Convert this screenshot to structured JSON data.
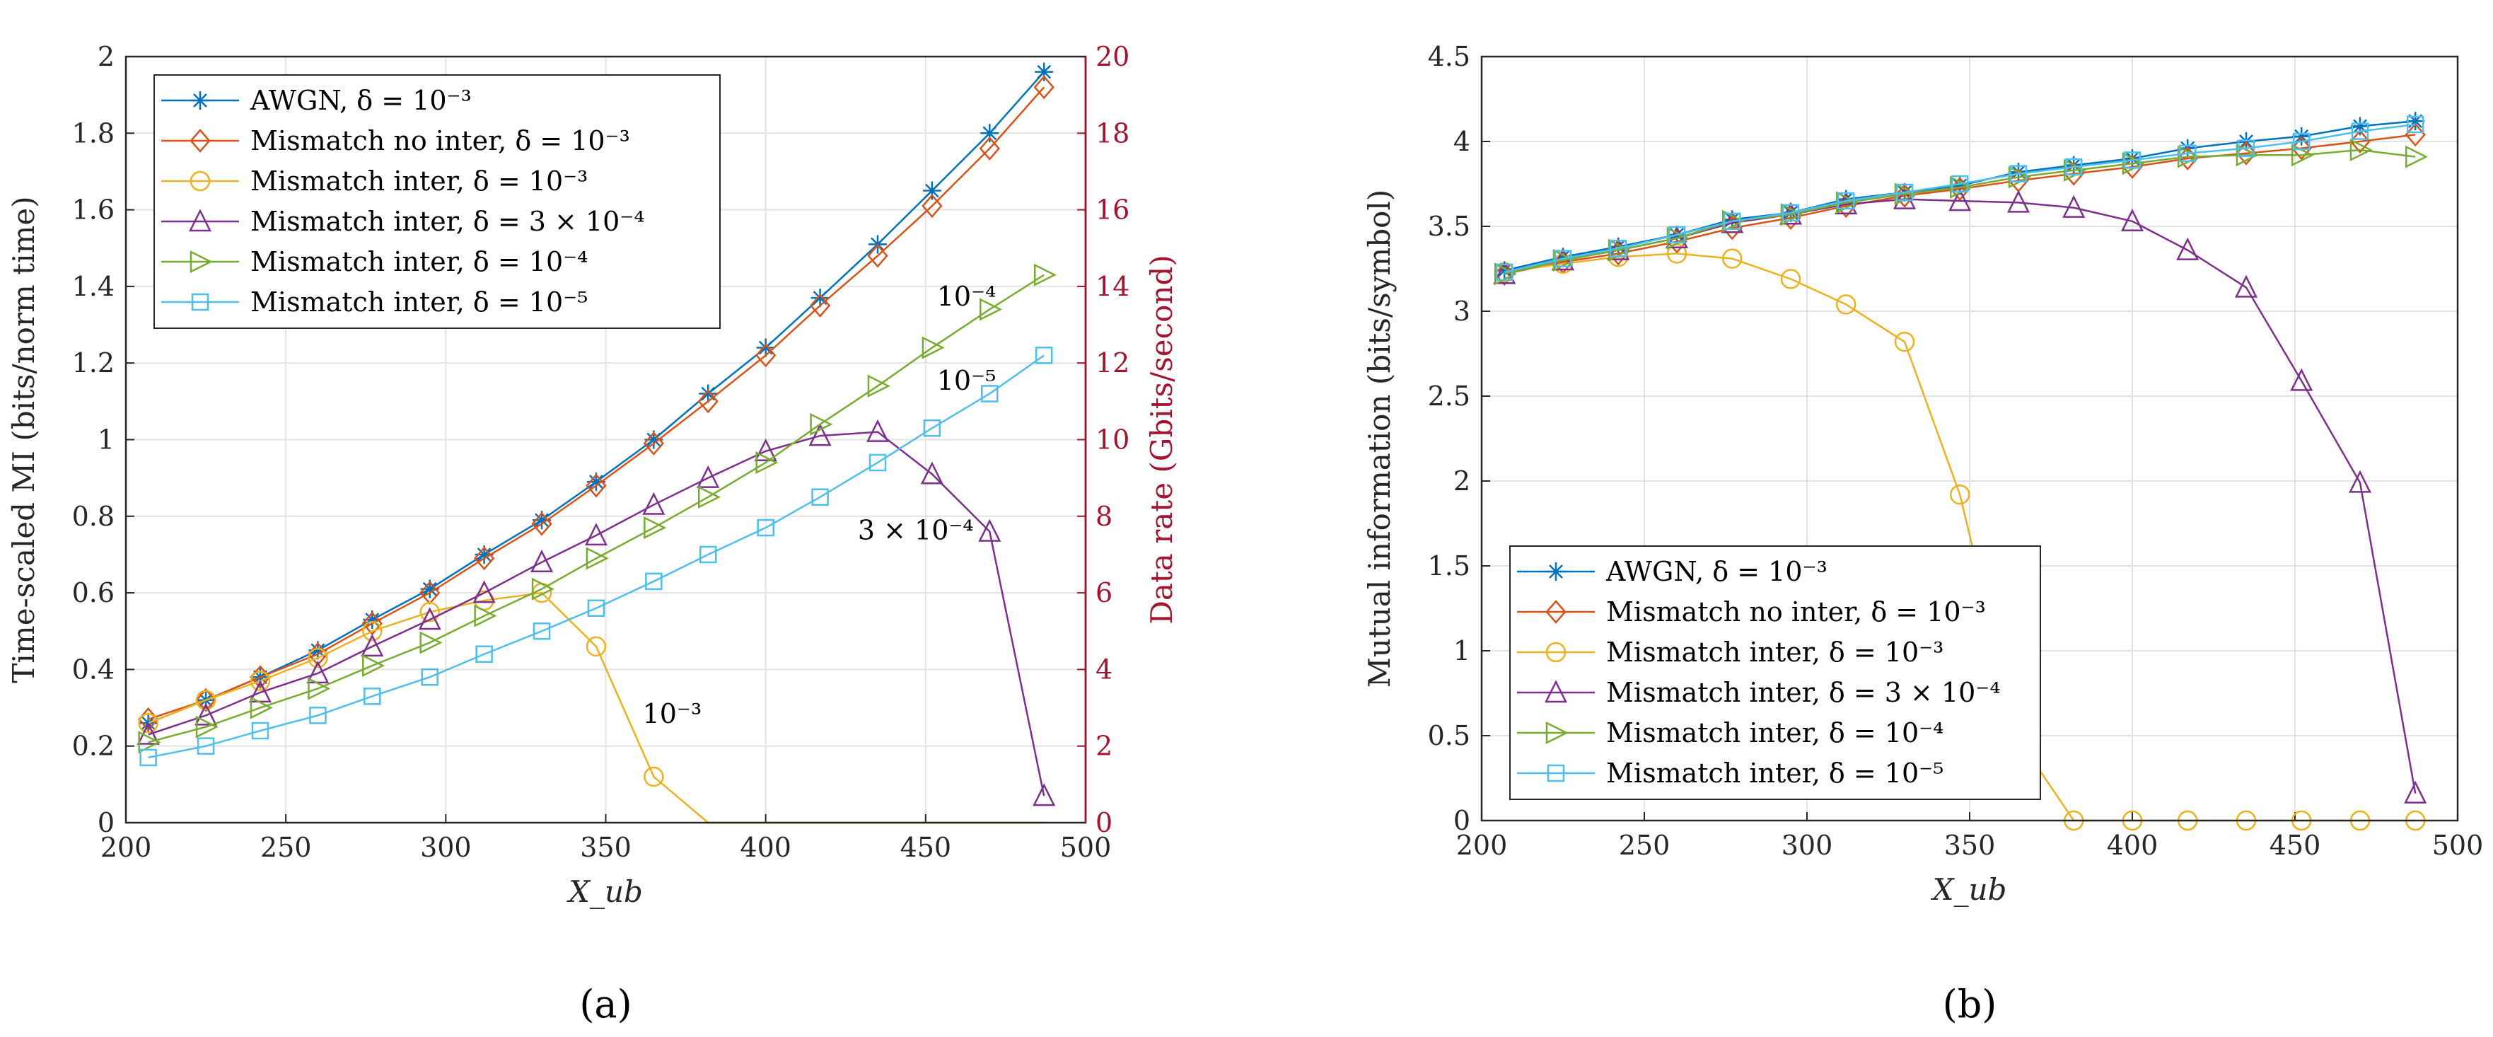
{
  "chart_data": [
    {
      "type": "line",
      "panel_label": "(a)",
      "xlabel": "X_ub",
      "ylabel": "Time-scaled MI (bits/norm time)",
      "y2label": "Data rate (Gbits/second)",
      "xlim": [
        200,
        500
      ],
      "ylim": [
        0,
        2
      ],
      "y2lim": [
        0,
        20
      ],
      "xticks": [
        "200",
        "250",
        "300",
        "350",
        "400",
        "450",
        "500"
      ],
      "yticks": [
        "0",
        "0.2",
        "0.4",
        "0.6",
        "0.8",
        "1",
        "1.2",
        "1.4",
        "1.6",
        "1.8",
        "2"
      ],
      "y2ticks": [
        "0",
        "2",
        "4",
        "6",
        "8",
        "10",
        "12",
        "14",
        "16",
        "18",
        "20"
      ],
      "grid": true,
      "legend_position": "top-left",
      "x": [
        207,
        225,
        242,
        260,
        277,
        295,
        312,
        330,
        347,
        365,
        382,
        400,
        417,
        435,
        452,
        470,
        487
      ],
      "series": [
        {
          "name": "AWGN, δ = 10⁻³",
          "color": "#0072bd",
          "marker": "star",
          "values": [
            0.26,
            0.32,
            0.38,
            0.45,
            0.53,
            0.61,
            0.7,
            0.79,
            0.89,
            1.0,
            1.12,
            1.24,
            1.37,
            1.51,
            1.65,
            1.8,
            1.96
          ]
        },
        {
          "name": "Mismatch no inter, δ = 10⁻³",
          "color": "#d95319",
          "marker": "diamond",
          "values": [
            0.27,
            0.32,
            0.38,
            0.44,
            0.52,
            0.6,
            0.69,
            0.78,
            0.88,
            0.99,
            1.1,
            1.22,
            1.35,
            1.48,
            1.61,
            1.76,
            1.92
          ]
        },
        {
          "name": "Mismatch inter, δ = 10⁻³",
          "color": "#edb120",
          "marker": "circle",
          "values": [
            0.26,
            0.32,
            0.37,
            0.43,
            0.5,
            0.55,
            0.58,
            0.6,
            0.46,
            0.12,
            0.0,
            0.0,
            0.0,
            0.0,
            0.0,
            0.0,
            0.0
          ],
          "markers_until": 9
        },
        {
          "name": "Mismatch inter, δ = 3 × 10⁻⁴",
          "color": "#7e2f8e",
          "marker": "triangle-up",
          "values": [
            0.23,
            0.28,
            0.34,
            0.39,
            0.46,
            0.53,
            0.6,
            0.68,
            0.75,
            0.83,
            0.9,
            0.97,
            1.01,
            1.02,
            0.91,
            0.76,
            0.07
          ]
        },
        {
          "name": "Mismatch inter, δ = 10⁻⁴",
          "color": "#77ac30",
          "marker": "triangle-right",
          "values": [
            0.21,
            0.25,
            0.3,
            0.35,
            0.41,
            0.47,
            0.54,
            0.61,
            0.69,
            0.77,
            0.85,
            0.94,
            1.04,
            1.14,
            1.24,
            1.34,
            1.43
          ]
        },
        {
          "name": "Mismatch inter, δ = 10⁻⁵",
          "color": "#4dbeee",
          "marker": "square",
          "values": [
            0.17,
            0.2,
            0.24,
            0.28,
            0.33,
            0.38,
            0.44,
            0.5,
            0.56,
            0.63,
            0.7,
            0.77,
            0.85,
            0.94,
            1.03,
            1.12,
            1.22
          ]
        }
      ],
      "annotations": [
        {
          "text": "10⁻⁴",
          "x": 472,
          "y": 1.35
        },
        {
          "text": "10⁻⁵",
          "x": 472,
          "y": 1.13
        },
        {
          "text": "3 × 10⁻⁴",
          "x": 465,
          "y": 0.74
        },
        {
          "text": "10⁻³",
          "x": 380,
          "y": 0.26
        }
      ]
    },
    {
      "type": "line",
      "panel_label": "(b)",
      "xlabel": "X_ub",
      "ylabel": "Mutual information (bits/symbol)",
      "xlim": [
        200,
        500
      ],
      "ylim": [
        0,
        4.5
      ],
      "xticks": [
        "200",
        "250",
        "300",
        "350",
        "400",
        "450",
        "500"
      ],
      "yticks": [
        "0",
        "0.5",
        "1",
        "1.5",
        "2",
        "2.5",
        "3",
        "3.5",
        "4",
        "4.5"
      ],
      "grid": true,
      "legend_position": "bottom-left",
      "x": [
        207,
        225,
        242,
        260,
        277,
        295,
        312,
        330,
        347,
        365,
        382,
        400,
        417,
        435,
        452,
        470,
        487
      ],
      "series": [
        {
          "name": "AWGN, δ = 10⁻³",
          "color": "#0072bd",
          "marker": "star",
          "values": [
            3.24,
            3.32,
            3.38,
            3.45,
            3.54,
            3.58,
            3.66,
            3.7,
            3.74,
            3.82,
            3.86,
            3.9,
            3.96,
            4.0,
            4.03,
            4.09,
            4.12
          ]
        },
        {
          "name": "Mismatch no inter, δ = 10⁻³",
          "color": "#d95319",
          "marker": "diamond",
          "values": [
            3.22,
            3.29,
            3.34,
            3.41,
            3.49,
            3.55,
            3.62,
            3.68,
            3.72,
            3.77,
            3.81,
            3.85,
            3.9,
            3.93,
            3.96,
            4.0,
            4.04
          ]
        },
        {
          "name": "Mismatch inter, δ = 10⁻³",
          "color": "#edb120",
          "marker": "circle",
          "values": [
            3.23,
            3.28,
            3.32,
            3.34,
            3.31,
            3.19,
            3.04,
            2.82,
            1.92,
            0.48,
            0.0,
            0.0,
            0.0,
            0.0,
            0.0,
            0.0,
            0.0
          ],
          "hidden_marker_indices": [
            9
          ]
        },
        {
          "name": "Mismatch inter, δ = 3 × 10⁻⁴",
          "color": "#7e2f8e",
          "marker": "triangle-up",
          "values": [
            3.22,
            3.3,
            3.36,
            3.43,
            3.52,
            3.57,
            3.63,
            3.66,
            3.65,
            3.64,
            3.61,
            3.53,
            3.36,
            3.14,
            2.59,
            1.99,
            0.16
          ]
        },
        {
          "name": "Mismatch inter, δ = 10⁻⁴",
          "color": "#77ac30",
          "marker": "triangle-right",
          "values": [
            3.22,
            3.3,
            3.36,
            3.43,
            3.53,
            3.57,
            3.64,
            3.69,
            3.73,
            3.79,
            3.83,
            3.87,
            3.91,
            3.92,
            3.92,
            3.95,
            3.91
          ]
        },
        {
          "name": "Mismatch inter, δ = 10⁻⁵",
          "color": "#4dbeee",
          "marker": "square",
          "values": [
            3.23,
            3.31,
            3.37,
            3.45,
            3.53,
            3.58,
            3.65,
            3.7,
            3.75,
            3.81,
            3.85,
            3.89,
            3.93,
            3.96,
            4.0,
            4.06,
            4.1
          ]
        }
      ]
    }
  ]
}
